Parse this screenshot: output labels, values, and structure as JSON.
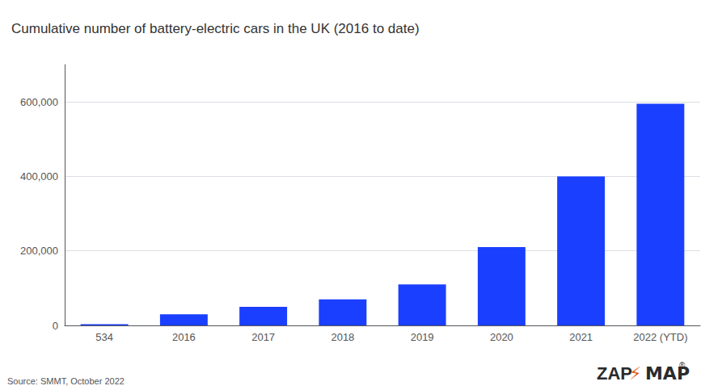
{
  "chart_data": {
    "type": "bar",
    "title": "Cumulative number of battery-electric cars in the UK (2016 to date)",
    "categories": [
      "534",
      "2016",
      "2017",
      "2018",
      "2019",
      "2020",
      "2021",
      "2022 (YTD)"
    ],
    "values": [
      3500,
      30000,
      50000,
      70000,
      110000,
      210000,
      400000,
      595000
    ],
    "color": "#1a3fff",
    "ylim": [
      0,
      700000
    ],
    "yticks": [
      0,
      {
        "value": 200000,
        "label": "200,000"
      },
      {
        "value": 400000,
        "label": "400,000"
      },
      {
        "value": 600000,
        "label": "600,000"
      }
    ],
    "grid": true,
    "annotations": [
      {
        "text": "Source: SMMT, October 2022",
        "color": "#555555"
      },
      {
        "text": "ZAP",
        "color": "#2b2b2b"
      },
      {
        "text": "⚡",
        "color": "#e8601a"
      },
      {
        "text": "MAP",
        "color": "#2b2b2b"
      },
      {
        "text": "®",
        "color": "#2b2b2b"
      }
    ]
  }
}
